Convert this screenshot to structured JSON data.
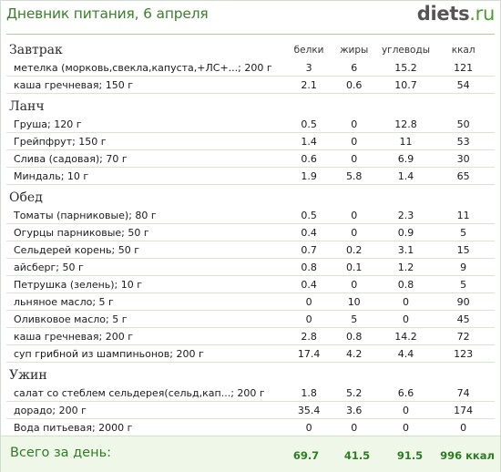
{
  "header": {
    "title": "Дневник питания, 6 апреля",
    "logo_main": "diets",
    "logo_tld": ".ru"
  },
  "columns": {
    "protein": "белки",
    "fat": "жиры",
    "carbs": "углеводы",
    "kcal": "ккал"
  },
  "meals": [
    {
      "title": "Завтрак",
      "items": [
        {
          "name": "метелка (морковь,свекла,капуста,+ЛС+...; 200 г",
          "p": "3",
          "f": "6",
          "c": "15.2",
          "k": "121"
        },
        {
          "name": "каша гречневая; 150 г",
          "p": "2.1",
          "f": "0.6",
          "c": "10.7",
          "k": "54"
        }
      ]
    },
    {
      "title": "Ланч",
      "items": [
        {
          "name": "Груша; 120 г",
          "p": "0.5",
          "f": "0",
          "c": "12.8",
          "k": "50"
        },
        {
          "name": "Грейпфрут; 150 г",
          "p": "1.4",
          "f": "0",
          "c": "11",
          "k": "53"
        },
        {
          "name": "Слива (садовая); 70 г",
          "p": "0.6",
          "f": "0",
          "c": "6.9",
          "k": "30"
        },
        {
          "name": "Миндаль; 10 г",
          "p": "1.9",
          "f": "5.8",
          "c": "1.4",
          "k": "65"
        }
      ]
    },
    {
      "title": "Обед",
      "items": [
        {
          "name": "Томаты (парниковые); 80 г",
          "p": "0.5",
          "f": "0",
          "c": "2.3",
          "k": "11"
        },
        {
          "name": "Огурцы парниковые; 50 г",
          "p": "0.4",
          "f": "0",
          "c": "0.9",
          "k": "5"
        },
        {
          "name": "Сельдерей корень; 50 г",
          "p": "0.7",
          "f": "0.2",
          "c": "3.1",
          "k": "15"
        },
        {
          "name": "айсберг; 50 г",
          "p": "0.8",
          "f": "0.1",
          "c": "1.2",
          "k": "9"
        },
        {
          "name": "Петрушка (зелень); 10 г",
          "p": "0.4",
          "f": "0",
          "c": "0.8",
          "k": "5"
        },
        {
          "name": "льняное масло; 5 г",
          "p": "0",
          "f": "10",
          "c": "0",
          "k": "90"
        },
        {
          "name": "Оливковое масло; 5 г",
          "p": "0",
          "f": "5",
          "c": "0",
          "k": "45"
        },
        {
          "name": "каша гречневая; 200 г",
          "p": "2.8",
          "f": "0.8",
          "c": "14.2",
          "k": "72"
        },
        {
          "name": "суп грибной из шампиньонов; 200 г",
          "p": "17.4",
          "f": "4.2",
          "c": "4.4",
          "k": "123"
        }
      ]
    },
    {
      "title": "Ужин",
      "items": [
        {
          "name": "салат со стеблем сельдерея(сельд,кап...; 200 г",
          "p": "1.8",
          "f": "5.2",
          "c": "6.6",
          "k": "74"
        },
        {
          "name": "дорадо; 200 г",
          "p": "35.4",
          "f": "3.6",
          "c": "0",
          "k": "174"
        },
        {
          "name": "Вода питьевая; 2000 г",
          "p": "0",
          "f": "0",
          "c": "0",
          "k": "0"
        }
      ]
    }
  ],
  "total": {
    "label": "Всего за день:",
    "protein": "69.7",
    "fat": "41.5",
    "carbs": "91.5",
    "kcal": "996 ккал"
  },
  "colors": {
    "accent": "#3a7f2a",
    "total_bg": "#eef7e8",
    "row_line": "#d9e4d6"
  }
}
